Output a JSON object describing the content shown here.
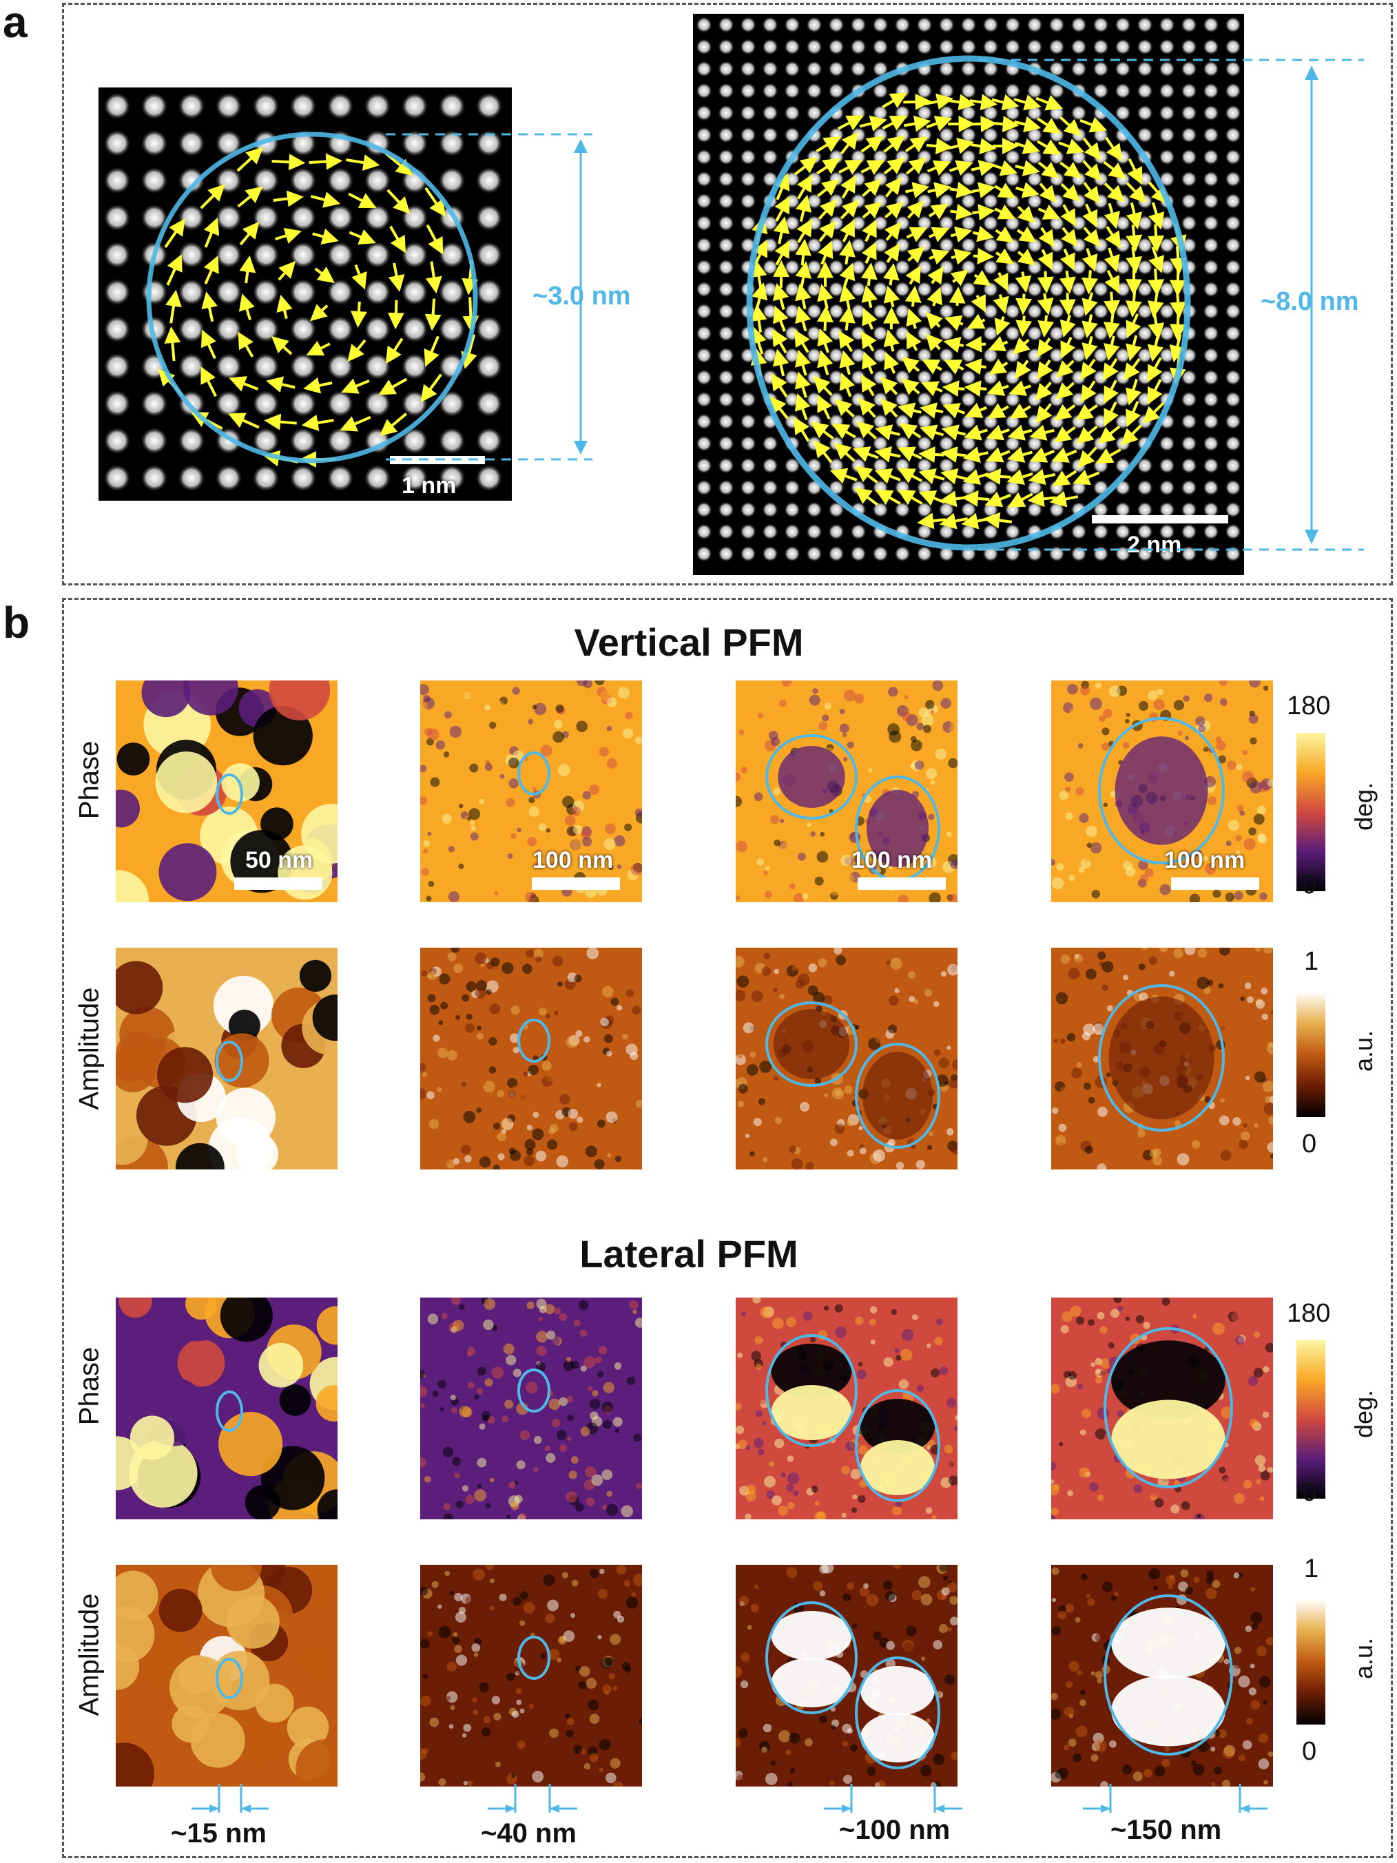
{
  "panel_a": {
    "letter": "a",
    "left_image": {
      "scale_label": "1 nm",
      "size_label": "~3.0 nm"
    },
    "right_image": {
      "scale_label": "2 nm",
      "size_label": "~8.0 nm"
    }
  },
  "panel_b": {
    "letter": "b",
    "vertical_title": "Vertical PFM",
    "lateral_title": "Lateral PFM",
    "row_labels": {
      "phase": "Phase",
      "amplitude": "Amplitude"
    },
    "scale_labels": [
      "50 nm",
      "100 nm",
      "100 nm",
      "100 nm"
    ],
    "colorbars": {
      "phase": {
        "max": "180",
        "min": "0",
        "unit": "deg."
      },
      "amplitude": {
        "max": "1",
        "min": "0",
        "unit": "a.u."
      }
    },
    "bottom_sizes": [
      "~15 nm",
      "~40 nm",
      "~100 nm",
      "~150 nm"
    ]
  },
  "colors": {
    "accent_circle": "#4fb8e6",
    "arrow": "#ffff33",
    "phase_map": [
      "#000004",
      "#5b1e7a",
      "#d0493f",
      "#f9a825",
      "#fcf6a0"
    ],
    "amplitude_map": [
      "#000000",
      "#6b1d05",
      "#c05a12",
      "#e8b050",
      "#ffffff"
    ]
  }
}
